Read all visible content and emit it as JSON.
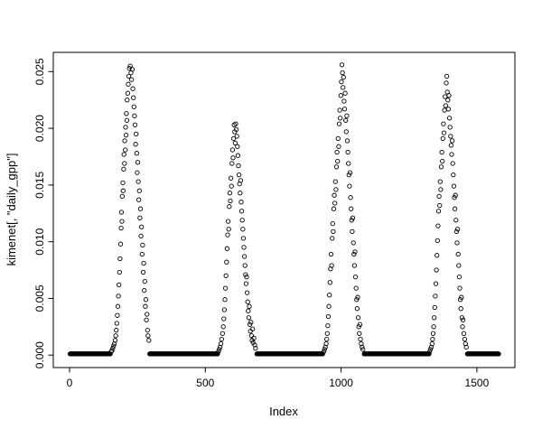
{
  "figure": {
    "background_color": "#ffffff",
    "foreground_color": "#000000"
  },
  "chart_data": {
    "type": "scatter",
    "title": "",
    "xlabel": "Index",
    "ylabel": "kimenet[, \"daily_gpp\"]",
    "marker": "open-circle",
    "marker_color": "#000000",
    "grid": false,
    "legend": null,
    "xlim": [
      -60,
      1640
    ],
    "ylim": [
      -0.0011,
      0.0267
    ],
    "x_ticks": [
      0,
      500,
      1000,
      1500
    ],
    "x_tick_labels": [
      "0",
      "500",
      "1000",
      "1500"
    ],
    "y_ticks": [
      0.0,
      0.005,
      0.01,
      0.015,
      0.02,
      0.025
    ],
    "y_tick_labels": [
      "0.000",
      "0.005",
      "0.010",
      "0.015",
      "0.020",
      "0.025"
    ],
    "zero_value": 0.0001,
    "zero_runs": [
      [
        2,
        150
      ],
      [
        295,
        545
      ],
      [
        690,
        932
      ],
      [
        1085,
        1324
      ],
      [
        1465,
        1580
      ]
    ],
    "points": [
      [
        153,
        0.0003
      ],
      [
        156,
        0.0004
      ],
      [
        159,
        0.0006
      ],
      [
        162,
        0.0008
      ],
      [
        165,
        0.001
      ],
      [
        168,
        0.0013
      ],
      [
        170,
        0.0017
      ],
      [
        172,
        0.0022
      ],
      [
        174,
        0.0028
      ],
      [
        176,
        0.0035
      ],
      [
        178,
        0.0043
      ],
      [
        180,
        0.0052
      ],
      [
        182,
        0.0062
      ],
      [
        184,
        0.0073
      ],
      [
        186,
        0.0085
      ],
      [
        188,
        0.0098
      ],
      [
        190,
        0.0112
      ],
      [
        191,
        0.0126
      ],
      [
        193,
        0.0118
      ],
      [
        194,
        0.014
      ],
      [
        196,
        0.0152
      ],
      [
        197,
        0.0145
      ],
      [
        199,
        0.0164
      ],
      [
        200,
        0.0177
      ],
      [
        202,
        0.0169
      ],
      [
        203,
        0.0189
      ],
      [
        205,
        0.0181
      ],
      [
        206,
        0.0201
      ],
      [
        208,
        0.0194
      ],
      [
        209,
        0.0213
      ],
      [
        211,
        0.0207
      ],
      [
        212,
        0.0225
      ],
      [
        214,
        0.0231
      ],
      [
        216,
        0.0239
      ],
      [
        218,
        0.0246
      ],
      [
        220,
        0.0253
      ],
      [
        223,
        0.0255
      ],
      [
        226,
        0.0249
      ],
      [
        228,
        0.0243
      ],
      [
        231,
        0.0252
      ],
      [
        233,
        0.0235
      ],
      [
        235,
        0.0227
      ],
      [
        237,
        0.0219
      ],
      [
        239,
        0.0211
      ],
      [
        241,
        0.0203
      ],
      [
        243,
        0.0186
      ],
      [
        245,
        0.0195
      ],
      [
        247,
        0.0178
      ],
      [
        249,
        0.0161
      ],
      [
        251,
        0.017
      ],
      [
        253,
        0.0153
      ],
      [
        255,
        0.0137
      ],
      [
        257,
        0.0145
      ],
      [
        259,
        0.0121
      ],
      [
        261,
        0.0129
      ],
      [
        263,
        0.0105
      ],
      [
        265,
        0.0113
      ],
      [
        267,
        0.0089
      ],
      [
        269,
        0.0097
      ],
      [
        271,
        0.0073
      ],
      [
        273,
        0.0081
      ],
      [
        275,
        0.0057
      ],
      [
        277,
        0.0065
      ],
      [
        279,
        0.0043
      ],
      [
        281,
        0.0049
      ],
      [
        283,
        0.0031
      ],
      [
        285,
        0.0036
      ],
      [
        287,
        0.0022
      ],
      [
        289,
        0.0017
      ],
      [
        292,
        0.0013
      ],
      [
        548,
        0.0003
      ],
      [
        551,
        0.0005
      ],
      [
        554,
        0.0007
      ],
      [
        557,
        0.001
      ],
      [
        560,
        0.0014
      ],
      [
        563,
        0.0019
      ],
      [
        566,
        0.0025
      ],
      [
        568,
        0.0032
      ],
      [
        570,
        0.004
      ],
      [
        572,
        0.0049
      ],
      [
        574,
        0.0059
      ],
      [
        576,
        0.007
      ],
      [
        578,
        0.0082
      ],
      [
        580,
        0.0094
      ],
      [
        582,
        0.0106
      ],
      [
        584,
        0.0118
      ],
      [
        586,
        0.0111
      ],
      [
        588,
        0.0131
      ],
      [
        590,
        0.0143
      ],
      [
        592,
        0.0136
      ],
      [
        594,
        0.0156
      ],
      [
        596,
        0.0149
      ],
      [
        598,
        0.0169
      ],
      [
        600,
        0.0181
      ],
      [
        602,
        0.0174
      ],
      [
        604,
        0.0191
      ],
      [
        606,
        0.0203
      ],
      [
        608,
        0.0197
      ],
      [
        610,
        0.0187
      ],
      [
        612,
        0.0204
      ],
      [
        614,
        0.0199
      ],
      [
        616,
        0.0193
      ],
      [
        618,
        0.0184
      ],
      [
        620,
        0.0176
      ],
      [
        622,
        0.0167
      ],
      [
        624,
        0.0159
      ],
      [
        626,
        0.0151
      ],
      [
        628,
        0.0143
      ],
      [
        630,
        0.0154
      ],
      [
        632,
        0.0135
      ],
      [
        634,
        0.0127
      ],
      [
        636,
        0.0119
      ],
      [
        638,
        0.0111
      ],
      [
        640,
        0.0103
      ],
      [
        642,
        0.0095
      ],
      [
        644,
        0.0087
      ],
      [
        646,
        0.0079
      ],
      [
        648,
        0.0071
      ],
      [
        650,
        0.0063
      ],
      [
        652,
        0.0069
      ],
      [
        654,
        0.0055
      ],
      [
        656,
        0.0047
      ],
      [
        658,
        0.0039
      ],
      [
        660,
        0.0033
      ],
      [
        662,
        0.0043
      ],
      [
        664,
        0.0027
      ],
      [
        666,
        0.0021
      ],
      [
        668,
        0.0029
      ],
      [
        670,
        0.0017
      ],
      [
        672,
        0.0013
      ],
      [
        674,
        0.0023
      ],
      [
        676,
        0.0011
      ],
      [
        679,
        0.0015
      ],
      [
        682,
        0.0009
      ],
      [
        685,
        0.0006
      ],
      [
        936,
        0.0003
      ],
      [
        939,
        0.0005
      ],
      [
        942,
        0.0007
      ],
      [
        945,
        0.001
      ],
      [
        947,
        0.0014
      ],
      [
        949,
        0.0019
      ],
      [
        951,
        0.0026
      ],
      [
        953,
        0.0034
      ],
      [
        955,
        0.0043
      ],
      [
        957,
        0.0053
      ],
      [
        959,
        0.0064
      ],
      [
        961,
        0.0076
      ],
      [
        963,
        0.0089
      ],
      [
        965,
        0.0079
      ],
      [
        967,
        0.0103
      ],
      [
        969,
        0.0116
      ],
      [
        971,
        0.0109
      ],
      [
        973,
        0.0129
      ],
      [
        975,
        0.0141
      ],
      [
        977,
        0.0134
      ],
      [
        979,
        0.0153
      ],
      [
        981,
        0.0146
      ],
      [
        983,
        0.0166
      ],
      [
        985,
        0.0179
      ],
      [
        987,
        0.0171
      ],
      [
        989,
        0.0191
      ],
      [
        991,
        0.0184
      ],
      [
        993,
        0.0204
      ],
      [
        995,
        0.0216
      ],
      [
        997,
        0.0209
      ],
      [
        999,
        0.0229
      ],
      [
        1001,
        0.0241
      ],
      [
        1003,
        0.0256
      ],
      [
        1005,
        0.0249
      ],
      [
        1007,
        0.0236
      ],
      [
        1009,
        0.0245
      ],
      [
        1011,
        0.0224
      ],
      [
        1013,
        0.0217
      ],
      [
        1015,
        0.0231
      ],
      [
        1017,
        0.0207
      ],
      [
        1019,
        0.0197
      ],
      [
        1021,
        0.0211
      ],
      [
        1023,
        0.0189
      ],
      [
        1025,
        0.0179
      ],
      [
        1027,
        0.0169
      ],
      [
        1029,
        0.0159
      ],
      [
        1031,
        0.0149
      ],
      [
        1033,
        0.0161
      ],
      [
        1035,
        0.0139
      ],
      [
        1037,
        0.0129
      ],
      [
        1039,
        0.0119
      ],
      [
        1041,
        0.0109
      ],
      [
        1043,
        0.0121
      ],
      [
        1045,
        0.0099
      ],
      [
        1047,
        0.0089
      ],
      [
        1049,
        0.0079
      ],
      [
        1051,
        0.0091
      ],
      [
        1053,
        0.0069
      ],
      [
        1055,
        0.0059
      ],
      [
        1057,
        0.0049
      ],
      [
        1059,
        0.0041
      ],
      [
        1061,
        0.0051
      ],
      [
        1063,
        0.0033
      ],
      [
        1065,
        0.0025
      ],
      [
        1067,
        0.0019
      ],
      [
        1069,
        0.0027
      ],
      [
        1071,
        0.0014
      ],
      [
        1074,
        0.001
      ],
      [
        1077,
        0.0007
      ],
      [
        1080,
        0.0005
      ],
      [
        1326,
        0.0003
      ],
      [
        1329,
        0.0005
      ],
      [
        1332,
        0.0007
      ],
      [
        1335,
        0.001
      ],
      [
        1337,
        0.0014
      ],
      [
        1339,
        0.0019
      ],
      [
        1341,
        0.0025
      ],
      [
        1343,
        0.0033
      ],
      [
        1345,
        0.0042
      ],
      [
        1347,
        0.0052
      ],
      [
        1349,
        0.0063
      ],
      [
        1351,
        0.0075
      ],
      [
        1353,
        0.0088
      ],
      [
        1355,
        0.0101
      ],
      [
        1357,
        0.0114
      ],
      [
        1359,
        0.0127
      ],
      [
        1361,
        0.014
      ],
      [
        1363,
        0.0132
      ],
      [
        1365,
        0.0153
      ],
      [
        1367,
        0.0146
      ],
      [
        1369,
        0.0166
      ],
      [
        1371,
        0.0179
      ],
      [
        1373,
        0.0171
      ],
      [
        1375,
        0.0191
      ],
      [
        1377,
        0.0204
      ],
      [
        1379,
        0.0196
      ],
      [
        1381,
        0.0216
      ],
      [
        1383,
        0.0228
      ],
      [
        1385,
        0.022
      ],
      [
        1387,
        0.024
      ],
      [
        1389,
        0.0246
      ],
      [
        1391,
        0.0232
      ],
      [
        1393,
        0.0225
      ],
      [
        1395,
        0.0217
      ],
      [
        1397,
        0.0229
      ],
      [
        1399,
        0.0209
      ],
      [
        1401,
        0.0201
      ],
      [
        1403,
        0.0193
      ],
      [
        1405,
        0.0185
      ],
      [
        1407,
        0.0177
      ],
      [
        1409,
        0.0189
      ],
      [
        1411,
        0.0169
      ],
      [
        1413,
        0.0159
      ],
      [
        1415,
        0.0149
      ],
      [
        1417,
        0.0139
      ],
      [
        1419,
        0.0129
      ],
      [
        1421,
        0.0141
      ],
      [
        1423,
        0.0119
      ],
      [
        1425,
        0.0109
      ],
      [
        1427,
        0.0099
      ],
      [
        1429,
        0.0111
      ],
      [
        1431,
        0.0089
      ],
      [
        1433,
        0.0079
      ],
      [
        1435,
        0.0069
      ],
      [
        1437,
        0.0059
      ],
      [
        1439,
        0.0049
      ],
      [
        1441,
        0.0041
      ],
      [
        1443,
        0.0051
      ],
      [
        1445,
        0.0033
      ],
      [
        1447,
        0.0025
      ],
      [
        1449,
        0.0031
      ],
      [
        1452,
        0.0019
      ],
      [
        1455,
        0.0014
      ],
      [
        1458,
        0.001
      ],
      [
        1461,
        0.0007
      ]
    ]
  }
}
